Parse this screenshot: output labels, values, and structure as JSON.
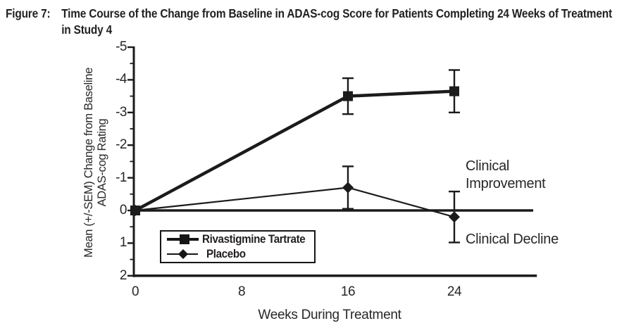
{
  "figure": {
    "label": "Figure 7:",
    "title_line1": "Time Course of the Change from Baseline in ADAS-cog Score for Patients Completing 24 Weeks of Treatment",
    "title_line2": "in Study 4"
  },
  "chart_data": {
    "type": "line",
    "title": "Figure 7: Time Course of the Change from Baseline in ADAS-cog Score for Patients Completing 24 Weeks of Treatment in Study 4",
    "xlabel": "Weeks During Treatment",
    "ylabel_line1": "Mean (+/-SEM) Change from Baseline",
    "ylabel_line2": "ADAS-cog Rating",
    "x_ticks": [
      0,
      8,
      16,
      24
    ],
    "y_ticks": [
      -5,
      -4,
      -3,
      -2,
      -1,
      0,
      1,
      2
    ],
    "ylim": [
      -5,
      2
    ],
    "xlim": [
      0,
      30
    ],
    "y_axis_inverted": true,
    "grid": false,
    "zero_reference_line": true,
    "error_bars": "SEM",
    "legend_position": "inside-lower-left",
    "series": [
      {
        "name": "Rivastigmine Tartrate",
        "marker": "square",
        "line_weight": "thick",
        "x": [
          0,
          16,
          24
        ],
        "y": [
          0,
          -3.5,
          -3.65
        ],
        "sem": [
          0,
          0.55,
          0.65
        ]
      },
      {
        "name": "Placebo",
        "marker": "diamond",
        "line_weight": "thin",
        "x": [
          0,
          16,
          24
        ],
        "y": [
          0,
          -0.7,
          0.2
        ],
        "sem": [
          0,
          0.65,
          0.78
        ]
      }
    ],
    "annotations": [
      {
        "text": "Clinical Improvement",
        "position": "right-above-zero-line"
      },
      {
        "text": "Clinical Decline",
        "position": "right-below-zero-line"
      }
    ]
  },
  "colors": {
    "line": "#1b1b1b",
    "text": "#2a2627",
    "background": "#ffffff"
  }
}
